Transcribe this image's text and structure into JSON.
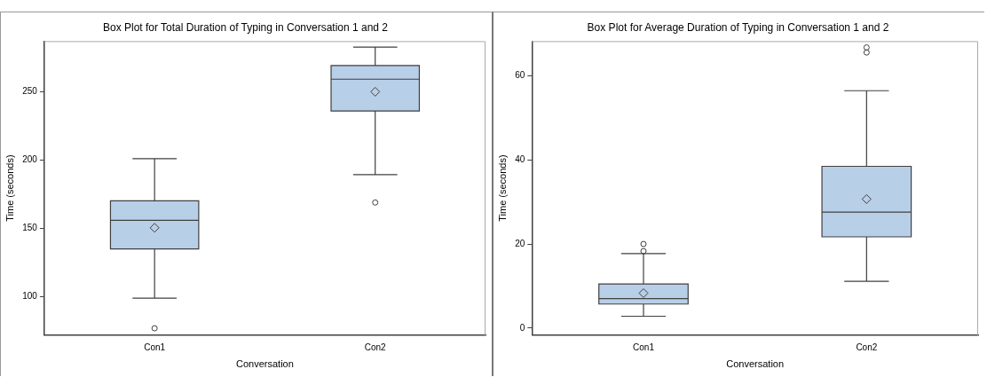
{
  "chart_data": [
    {
      "type": "box",
      "title": "Box Plot for Total Duration of Typing in Conversation 1 and 2",
      "xlabel": "Conversation",
      "ylabel": "Time (seconds)",
      "categories": [
        "Con1",
        "Con2"
      ],
      "color": "#b8cfe8",
      "boxes": [
        {
          "low": 99,
          "q1": 135,
          "median": 156,
          "q3": 170.3,
          "high": 201,
          "mean": 150.5,
          "outliers": [
            77
          ]
        },
        {
          "low": 189.4,
          "q1": 235.9,
          "median": 259.2,
          "q3": 269.2,
          "high": 282.6,
          "mean": 250,
          "outliers": [
            169
          ]
        }
      ],
      "ylim": [
        72,
        287
      ],
      "yticks": [
        100,
        150,
        200,
        250
      ],
      "grid": false
    },
    {
      "type": "box",
      "title": "Box Plot for Average Duration of Typing in Conversation 1 and 2",
      "xlabel": "Conversation",
      "ylabel": "Time (seconds)",
      "categories": [
        "Con1",
        "Con2"
      ],
      "color": "#b8cfe8",
      "boxes": [
        {
          "low": 2.8,
          "q1": 5.7,
          "median": 7.0,
          "q3": 10.5,
          "high": 17.7,
          "mean": 8.3,
          "outliers": [
            18.3,
            20.0
          ]
        },
        {
          "low": 11.1,
          "q1": 21.7,
          "median": 27.6,
          "q3": 38.5,
          "high": 56.5,
          "mean": 30.7,
          "outliers": [
            65.6,
            66.8
          ]
        }
      ],
      "ylim": [
        -1.7,
        68.3
      ],
      "yticks": [
        0,
        20,
        40,
        60
      ],
      "grid": false
    }
  ]
}
